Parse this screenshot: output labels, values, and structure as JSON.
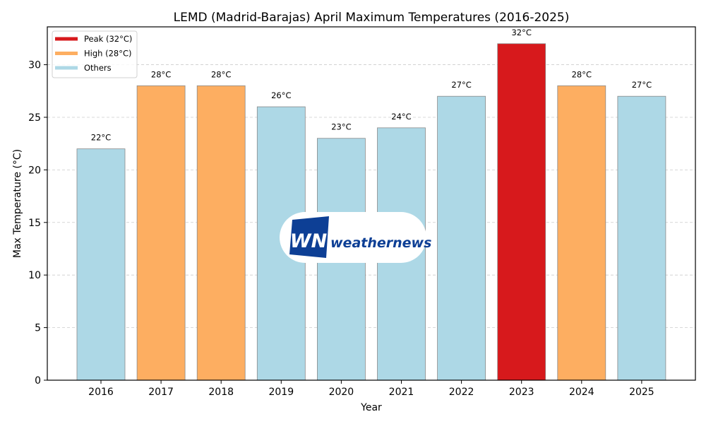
{
  "chart_data": {
    "type": "bar",
    "title": "LEMD (Madrid-Barajas) April Maximum Temperatures (2016-2025)",
    "xlabel": "Year",
    "ylabel": "Max Temperature (°C)",
    "ylim": [
      0,
      33.6
    ],
    "yticks": [
      0,
      5,
      10,
      15,
      20,
      25,
      30
    ],
    "grid": "y-dashed",
    "categories": [
      "2016",
      "2017",
      "2018",
      "2019",
      "2020",
      "2021",
      "2022",
      "2023",
      "2024",
      "2025"
    ],
    "values": [
      22,
      28,
      28,
      26,
      23,
      24,
      27,
      32,
      28,
      27
    ],
    "value_labels": [
      "22°C",
      "28°C",
      "28°C",
      "26°C",
      "23°C",
      "24°C",
      "27°C",
      "32°C",
      "28°C",
      "27°C"
    ],
    "bar_groups": [
      "others",
      "high",
      "high",
      "others",
      "others",
      "others",
      "others",
      "peak",
      "high",
      "others"
    ],
    "colors": {
      "peak": "#d7191c",
      "high": "#fdae61",
      "others": "#add8e6",
      "edge": "#8a8a8a"
    },
    "legend": {
      "placement": "top-left",
      "entries": [
        {
          "label": "Peak (32°C)",
          "group": "peak"
        },
        {
          "label": "High (28°C)",
          "group": "high"
        },
        {
          "label": "Others",
          "group": "others"
        }
      ]
    }
  },
  "watermark": {
    "logo_mark": "WN",
    "brand_text": "weathernews",
    "brand_color": "#0d3f95"
  }
}
